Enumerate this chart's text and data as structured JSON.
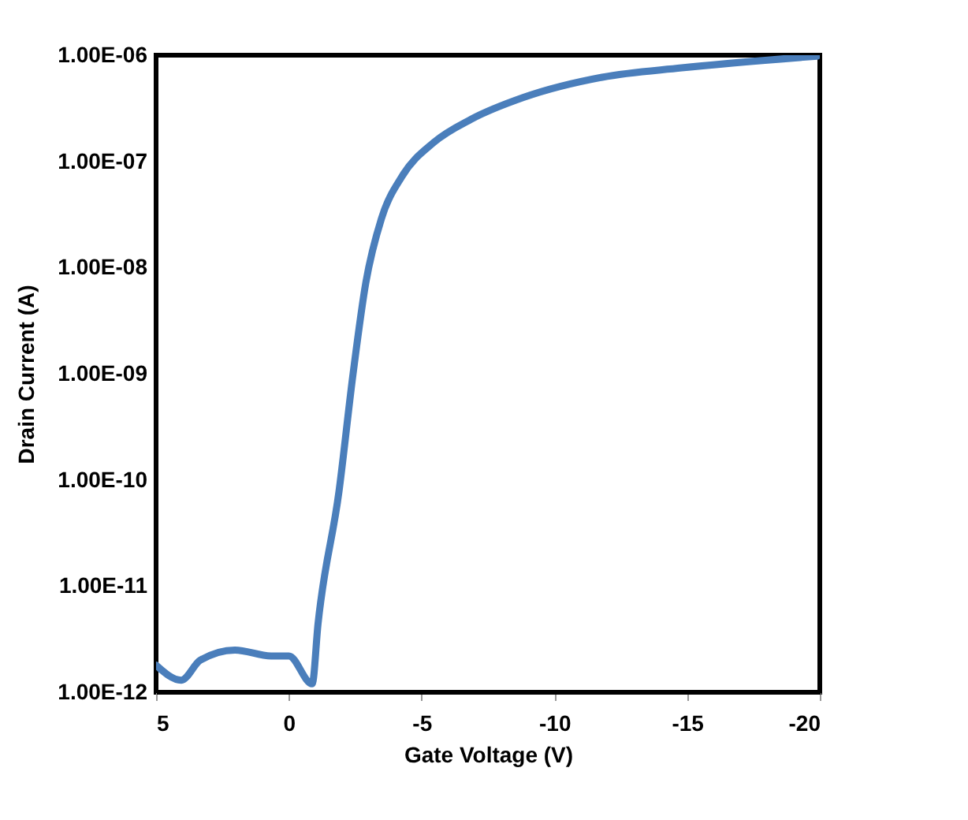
{
  "chart_data": {
    "type": "line",
    "xlabel": "Gate Voltage (V)",
    "ylabel": "Drain Current (A)",
    "log": "y",
    "grid": false,
    "marker": "none",
    "line_style": "solid",
    "xlim": [
      5,
      -20
    ],
    "xticks": [
      5,
      0,
      -5,
      -10,
      -15,
      -20
    ],
    "ylim": [
      1e-12,
      1e-06
    ],
    "yticks": [
      {
        "value": 1e-12,
        "label": "1.00E-12"
      },
      {
        "value": 1e-11,
        "label": "1.00E-11"
      },
      {
        "value": 1e-10,
        "label": "1.00E-10"
      },
      {
        "value": 1e-09,
        "label": "1.00E-09"
      },
      {
        "value": 1e-08,
        "label": "1.00E-08"
      },
      {
        "value": 1e-07,
        "label": "1.00E-07"
      },
      {
        "value": 1e-06,
        "label": "1.00E-06"
      }
    ],
    "x": [
      5,
      4.05,
      3.34,
      2.03,
      0.67,
      0,
      -0.88,
      -1.1,
      -1.89,
      -2.42,
      -2.9,
      -3.49,
      -4.26,
      -5.45,
      -6.88,
      -8.84,
      -11.8,
      -14.8,
      -19.9
    ],
    "series": [
      {
        "color": "#4a7ebb",
        "values": [
          1.8e-12,
          1.3e-12,
          2e-12,
          2.5e-12,
          2.2e-12,
          2.2e-12,
          1.2e-12,
          4.4e-12,
          7.8e-11,
          1e-09,
          7.2e-09,
          2.9e-08,
          7.2e-08,
          1.5e-07,
          2.5e-07,
          4e-07,
          6.2e-07,
          7.6e-07,
          9.8e-07
        ]
      }
    ]
  }
}
